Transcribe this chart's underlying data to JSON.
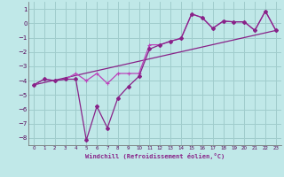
{
  "xlabel": "Windchill (Refroidissement éolien,°C)",
  "bg_color": "#c0e8e8",
  "grid_color": "#a0cccc",
  "line_color_dark": "#882288",
  "line_color_bright": "#bb44bb",
  "xlim": [
    -0.5,
    23.5
  ],
  "ylim": [
    -8.5,
    1.5
  ],
  "xticks": [
    0,
    1,
    2,
    3,
    4,
    5,
    6,
    7,
    8,
    9,
    10,
    11,
    12,
    13,
    14,
    15,
    16,
    17,
    18,
    19,
    20,
    21,
    22,
    23
  ],
  "yticks": [
    1,
    0,
    -1,
    -2,
    -3,
    -4,
    -5,
    -6,
    -7,
    -8
  ],
  "line_main_x": [
    0,
    1,
    2,
    3,
    4,
    5,
    6,
    7,
    8,
    9,
    10,
    11,
    12,
    13,
    14,
    15,
    16,
    17,
    18,
    19,
    20,
    21,
    22,
    23
  ],
  "line_main_y": [
    -4.3,
    -3.9,
    -4.0,
    -3.9,
    -3.9,
    -8.15,
    -5.8,
    -7.3,
    -5.2,
    -4.4,
    -3.7,
    -1.8,
    -1.5,
    -1.25,
    -1.05,
    0.65,
    0.4,
    -0.35,
    0.15,
    0.1,
    0.1,
    -0.5,
    0.85,
    -0.5
  ],
  "line_smooth_x": [
    0,
    1,
    2,
    3,
    4,
    5,
    6,
    7,
    8,
    9,
    10,
    11,
    12,
    13,
    14,
    15,
    16,
    17,
    18,
    19,
    20,
    21,
    22,
    23
  ],
  "line_smooth_y": [
    -4.3,
    -3.9,
    -4.0,
    -3.9,
    -3.5,
    -4.0,
    -3.5,
    -4.2,
    -3.5,
    -3.5,
    -3.5,
    -1.5,
    -1.5,
    -1.25,
    -1.05,
    0.65,
    0.4,
    -0.35,
    0.15,
    0.1,
    0.1,
    -0.5,
    0.85,
    -0.5
  ],
  "trend_x": [
    0,
    23
  ],
  "trend_y": [
    -4.3,
    -0.5
  ]
}
